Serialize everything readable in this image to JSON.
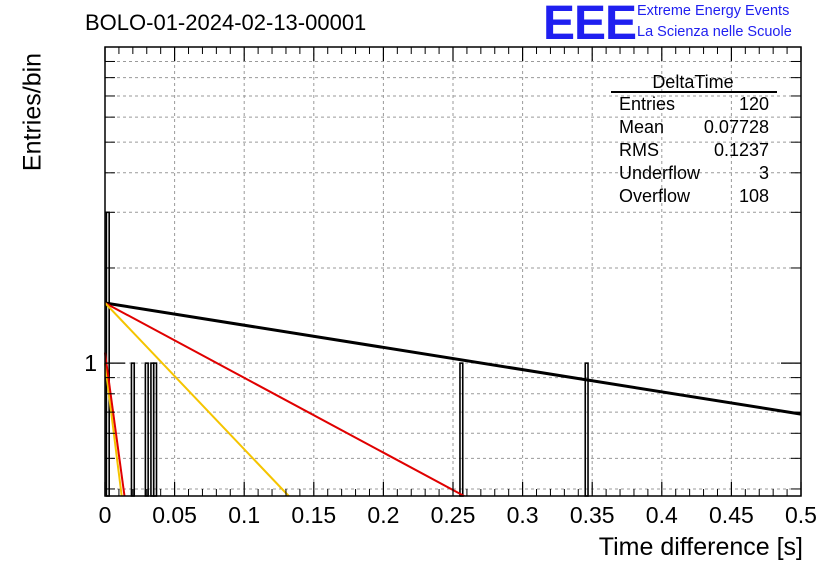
{
  "header": {
    "title": "BOLO-01-2024-02-13-00001",
    "logo_text": "EEE",
    "logo_line1": "Extreme Energy Events",
    "logo_line2": "La Scienza nelle Scuole"
  },
  "stats": {
    "name": "DeltaTime",
    "rows": [
      {
        "label": "Entries",
        "value": "120"
      },
      {
        "label": "Mean",
        "value": "0.07728"
      },
      {
        "label": "RMS",
        "value": "0.1237"
      },
      {
        "label": "Underflow",
        "value": "3"
      },
      {
        "label": "Overflow",
        "value": "108"
      }
    ]
  },
  "colors": {
    "black_fit": "#000000",
    "red_fit": "#e00000",
    "yellow_fit": "#f5c400",
    "brand": "#1f1ff0"
  },
  "chart_data": {
    "type": "bar",
    "title": "BOLO-01-2024-02-13-00001",
    "xlabel": "Time difference [s]",
    "ylabel": "Entries/bin",
    "xlim": [
      0,
      0.5
    ],
    "ylim": [
      0.38,
      10
    ],
    "y_scale": "log",
    "grid": true,
    "x_ticks": [
      "0",
      "0.05",
      "0.1",
      "0.15",
      "0.2",
      "0.25",
      "0.3",
      "0.35",
      "0.4",
      "0.45",
      "0.5"
    ],
    "y_ticks": [
      "1"
    ],
    "bin_width": 0.002,
    "bins": [
      {
        "x": 0.002,
        "count": 3
      },
      {
        "x": 0.02,
        "count": 1
      },
      {
        "x": 0.03,
        "count": 1
      },
      {
        "x": 0.034,
        "count": 1
      },
      {
        "x": 0.036,
        "count": 1
      },
      {
        "x": 0.256,
        "count": 1
      },
      {
        "x": 0.346,
        "count": 1
      }
    ],
    "fits": [
      {
        "color": "black",
        "x": [
          0,
          0.5
        ],
        "y": [
          1.55,
          0.69
        ]
      },
      {
        "color": "red",
        "x": [
          0,
          0.258
        ],
        "y": [
          1.55,
          0.38
        ]
      },
      {
        "color": "yellow",
        "x": [
          0,
          0.132
        ],
        "y": [
          1.55,
          0.38
        ]
      },
      {
        "color": "yellow",
        "x": [
          0,
          0.012
        ],
        "y": [
          1.0,
          0.38
        ]
      },
      {
        "color": "red",
        "x": [
          0,
          0.014
        ],
        "y": [
          1.08,
          0.38
        ]
      }
    ]
  }
}
